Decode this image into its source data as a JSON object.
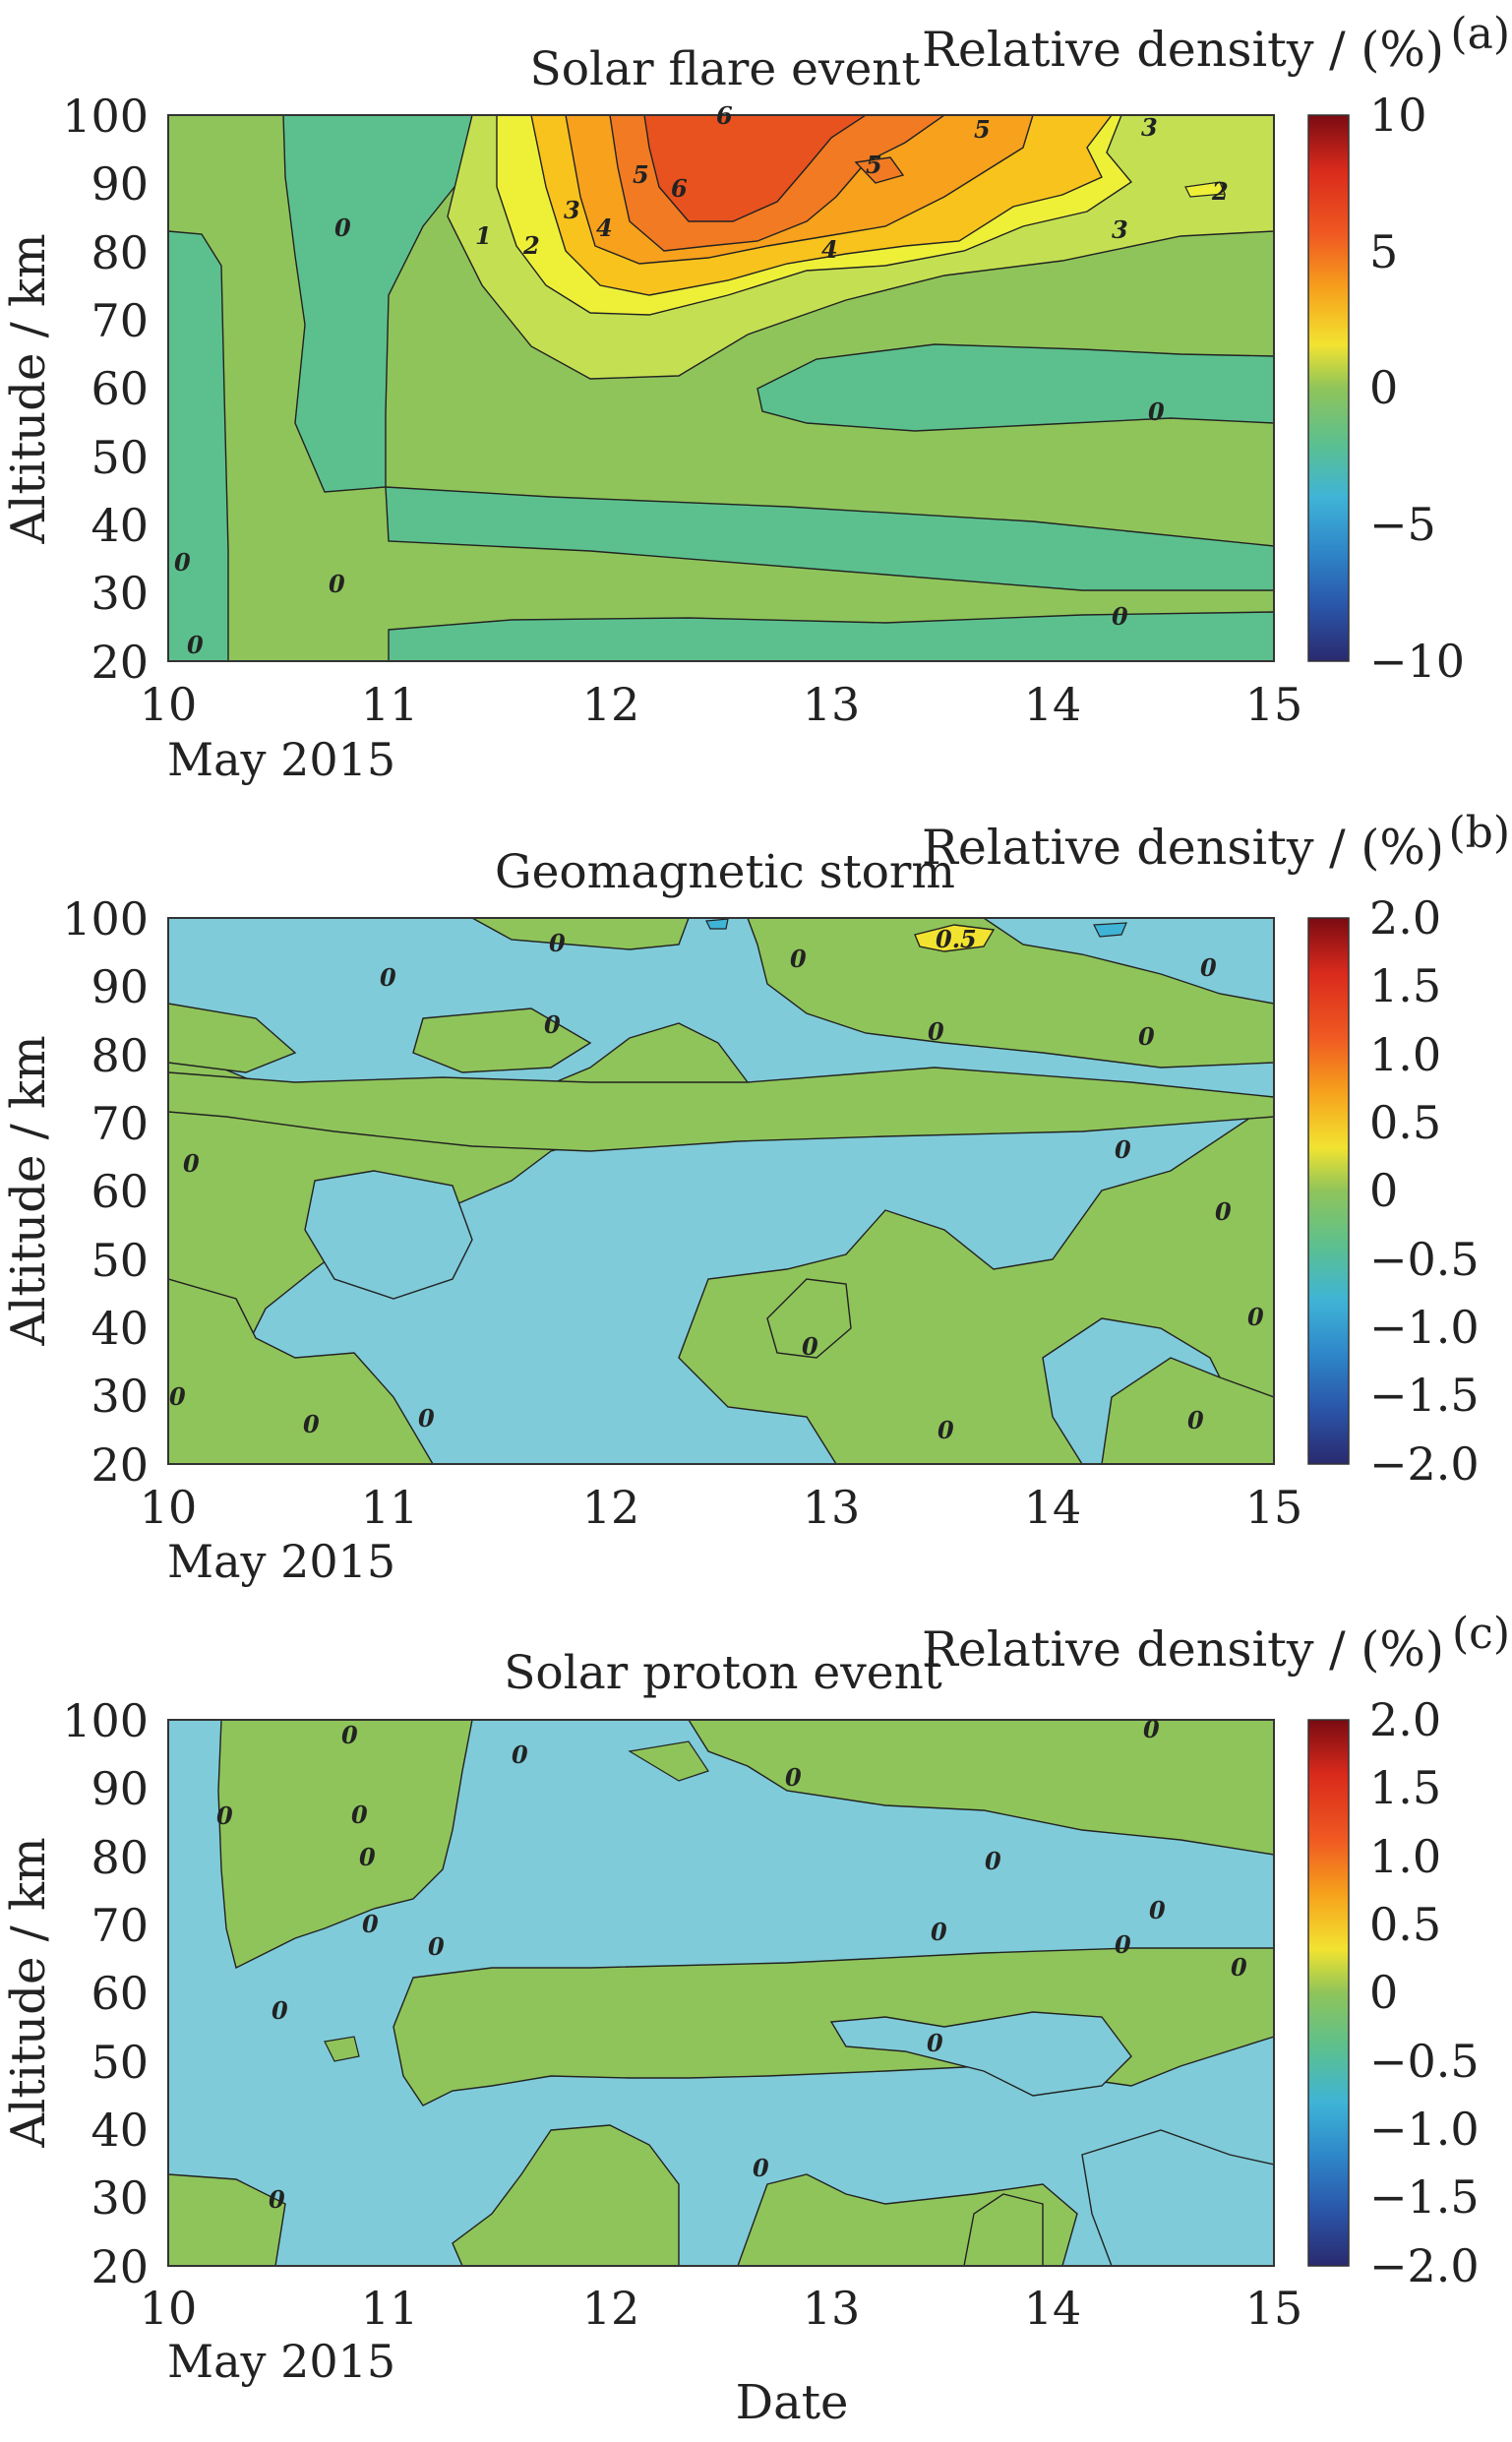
{
  "xlabel": "Date",
  "colors": {
    "field_green": "#8fc45a",
    "cold_blue": "#7fcbd9",
    "light_green": "#5cc08e",
    "frame": "#333333"
  },
  "chart_data": [
    {
      "type": "heatmap",
      "panel_label": "(a)",
      "title": "Solar flare event",
      "ylabel": "Altitude / km",
      "x_ticks": [
        "10",
        "11",
        "12",
        "13",
        "14",
        "15"
      ],
      "x_sublabel": "May 2015",
      "xlim": [
        10,
        15
      ],
      "y_ticks": [
        "20",
        "30",
        "40",
        "50",
        "60",
        "70",
        "80",
        "90",
        "100"
      ],
      "ylim": [
        20,
        100
      ],
      "colorbar_title": "Relative density / (%)",
      "colorbar_ticks": [
        "10",
        "5",
        "0",
        "−5",
        "−10"
      ],
      "clim": [
        -10,
        10
      ],
      "contour_labels": [
        "6",
        "5",
        "6",
        "5",
        "5",
        "4",
        "4",
        "3",
        "3",
        "3",
        "2",
        "2",
        "1",
        "0",
        "0",
        "0",
        "0",
        "0",
        "0"
      ],
      "features": {
        "peak_date": 12.5,
        "peak_altitude_km": 90,
        "peak_value_pct": 6,
        "positive_region_altitude_km": [
          60,
          100
        ],
        "positive_region_dates": [
          11.5,
          15
        ]
      }
    },
    {
      "type": "heatmap",
      "panel_label": "(b)",
      "title": "Geomagnetic storm",
      "ylabel": "Altitude / km",
      "x_ticks": [
        "10",
        "11",
        "12",
        "13",
        "14",
        "15"
      ],
      "x_sublabel": "May 2015",
      "xlim": [
        10,
        15
      ],
      "y_ticks": [
        "20",
        "30",
        "40",
        "50",
        "60",
        "70",
        "80",
        "90",
        "100"
      ],
      "ylim": [
        20,
        100
      ],
      "colorbar_title": "Relative density / (%)",
      "colorbar_ticks": [
        "2.0",
        "1.5",
        "1.0",
        "0.5",
        "0",
        "−0.5",
        "−1.0",
        "−1.5",
        "−2.0"
      ],
      "clim": [
        -2,
        2
      ],
      "contour_labels": [
        "0.5",
        "0",
        "0",
        "0",
        "0",
        "0",
        "0",
        "0",
        "0",
        "0",
        "0",
        "0",
        "0",
        "0",
        "0",
        "0",
        "0",
        "0"
      ],
      "features": {
        "value_range_pct": [
          -0.5,
          0.5
        ],
        "max_date": 13.5,
        "max_altitude_km": 99,
        "max_value_pct": 0.5
      }
    },
    {
      "type": "heatmap",
      "panel_label": "(c)",
      "title": "Solar proton event",
      "ylabel": "Altitude / km",
      "x_ticks": [
        "10",
        "11",
        "12",
        "13",
        "14",
        "15"
      ],
      "x_sublabel": "May 2015",
      "xlim": [
        10,
        15
      ],
      "y_ticks": [
        "20",
        "30",
        "40",
        "50",
        "60",
        "70",
        "80",
        "90",
        "100"
      ],
      "ylim": [
        20,
        100
      ],
      "colorbar_title": "Relative density / (%)",
      "colorbar_ticks": [
        "2.0",
        "1.5",
        "1.0",
        "0.5",
        "0",
        "−0.5",
        "−1.0",
        "−1.5",
        "−2.0"
      ],
      "clim": [
        -2,
        2
      ],
      "contour_labels": [
        "0",
        "0",
        "0",
        "0",
        "0",
        "0",
        "0",
        "0",
        "0",
        "0",
        "0",
        "0",
        "0",
        "0",
        "0",
        "0",
        "0",
        "0"
      ],
      "features": {
        "value_range_pct": [
          -0.5,
          0.5
        ]
      }
    }
  ]
}
